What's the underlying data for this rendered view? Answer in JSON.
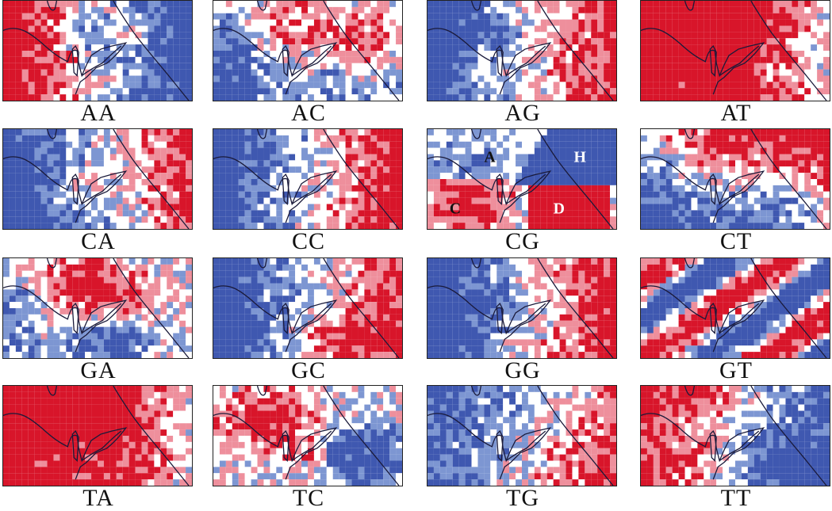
{
  "figure": {
    "panels": [
      {
        "label": "AA",
        "pattern": "aa"
      },
      {
        "label": "AC",
        "pattern": "ac"
      },
      {
        "label": "AG",
        "pattern": "ag"
      },
      {
        "label": "AT",
        "pattern": "at"
      },
      {
        "label": "CA",
        "pattern": "ca"
      },
      {
        "label": "CC",
        "pattern": "cc"
      },
      {
        "label": "CG",
        "pattern": "cg",
        "region_labels": [
          "A",
          "H",
          "C",
          "D"
        ]
      },
      {
        "label": "CT",
        "pattern": "ct"
      },
      {
        "label": "GA",
        "pattern": "ga"
      },
      {
        "label": "GC",
        "pattern": "gc"
      },
      {
        "label": "GG",
        "pattern": "gg"
      },
      {
        "label": "GT",
        "pattern": "gt"
      },
      {
        "label": "TA",
        "pattern": "ta"
      },
      {
        "label": "TC",
        "pattern": "tc"
      },
      {
        "label": "TG",
        "pattern": "tg"
      },
      {
        "label": "TT",
        "pattern": "tt"
      }
    ],
    "colors": {
      "high": "#d8152a",
      "mid_high": "#ee8f9c",
      "neutral": "#ffffff",
      "mid_low": "#7d96d2",
      "low": "#3f58b0",
      "outline": "#1a1a3a"
    }
  }
}
